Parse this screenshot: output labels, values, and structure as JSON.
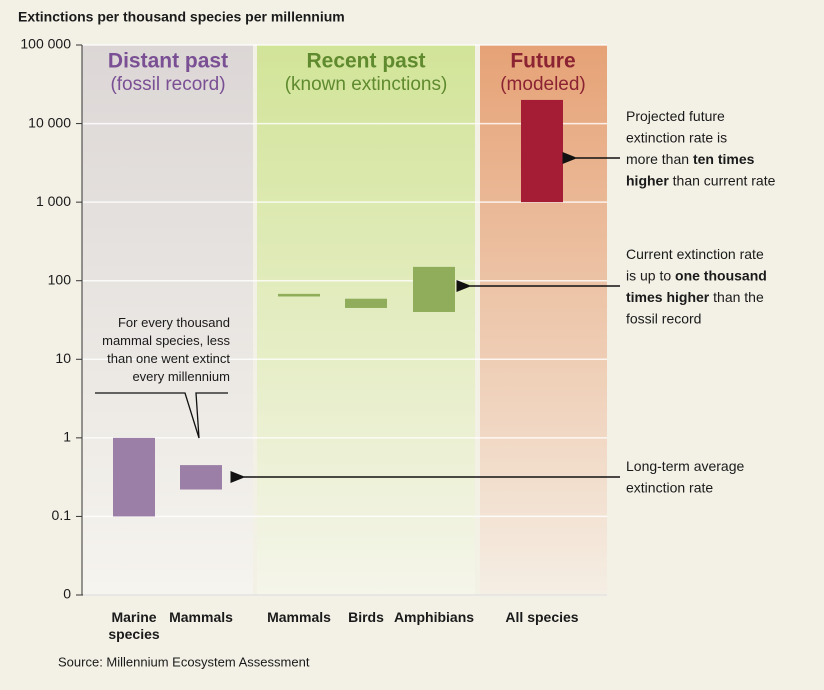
{
  "chart_data": {
    "type": "bar",
    "title": "Extinctions per thousand species per millennium",
    "source": "Source: Millennium Ecosystem Assessment",
    "log_scale": true,
    "grid": true,
    "ylim": [
      0.01,
      100000
    ],
    "yticks": [
      {
        "value": 100000,
        "label": "100 000"
      },
      {
        "value": 10000,
        "label": "10 000"
      },
      {
        "value": 1000,
        "label": "1 000"
      },
      100,
      10,
      1,
      0.1,
      {
        "value": 0.01,
        "label": "0"
      }
    ],
    "groups": [
      {
        "title": "Distant past",
        "subtitle": "(fossil record)",
        "color": "#7a4f94"
      },
      {
        "title": "Recent past",
        "subtitle": "(known extinctions)",
        "color": "#5f8a2e"
      },
      {
        "title": "Future",
        "subtitle": "(modeled)",
        "color": "#8b2332"
      }
    ],
    "categories": [
      "Marine species",
      "Mammals",
      "Mammals",
      "Birds",
      "Amphibians",
      "All species"
    ],
    "low": [
      0.1,
      0.22,
      63,
      45,
      40,
      1000
    ],
    "high": [
      1,
      0.45,
      68,
      59,
      150,
      20000
    ],
    "colors": [
      "#9b7fa6",
      "#9b7fa6",
      "#8fad5a",
      "#8fad5a",
      "#8fad5a",
      "#a51d35"
    ],
    "annotations": [
      {
        "lines": [
          [
            "Projected future"
          ],
          [
            "extinction rate is"
          ],
          [
            "more than ",
            {
              "bold": "ten times"
            }
          ],
          [
            {
              "bold": "higher"
            },
            " than current rate"
          ]
        ]
      },
      {
        "lines": [
          [
            "Current extinction rate"
          ],
          [
            "is up to ",
            {
              "bold": "one thousand"
            }
          ],
          [
            {
              "bold": "times higher"
            },
            " than the"
          ],
          [
            "fossil record"
          ]
        ]
      },
      {
        "lines": [
          [
            "Long-term average"
          ],
          [
            "extinction rate"
          ]
        ]
      },
      {
        "lines": [
          [
            "For every thousand"
          ],
          [
            "mammal species, less"
          ],
          [
            "than one went extinct"
          ],
          [
            "every millennium"
          ]
        ]
      }
    ]
  }
}
